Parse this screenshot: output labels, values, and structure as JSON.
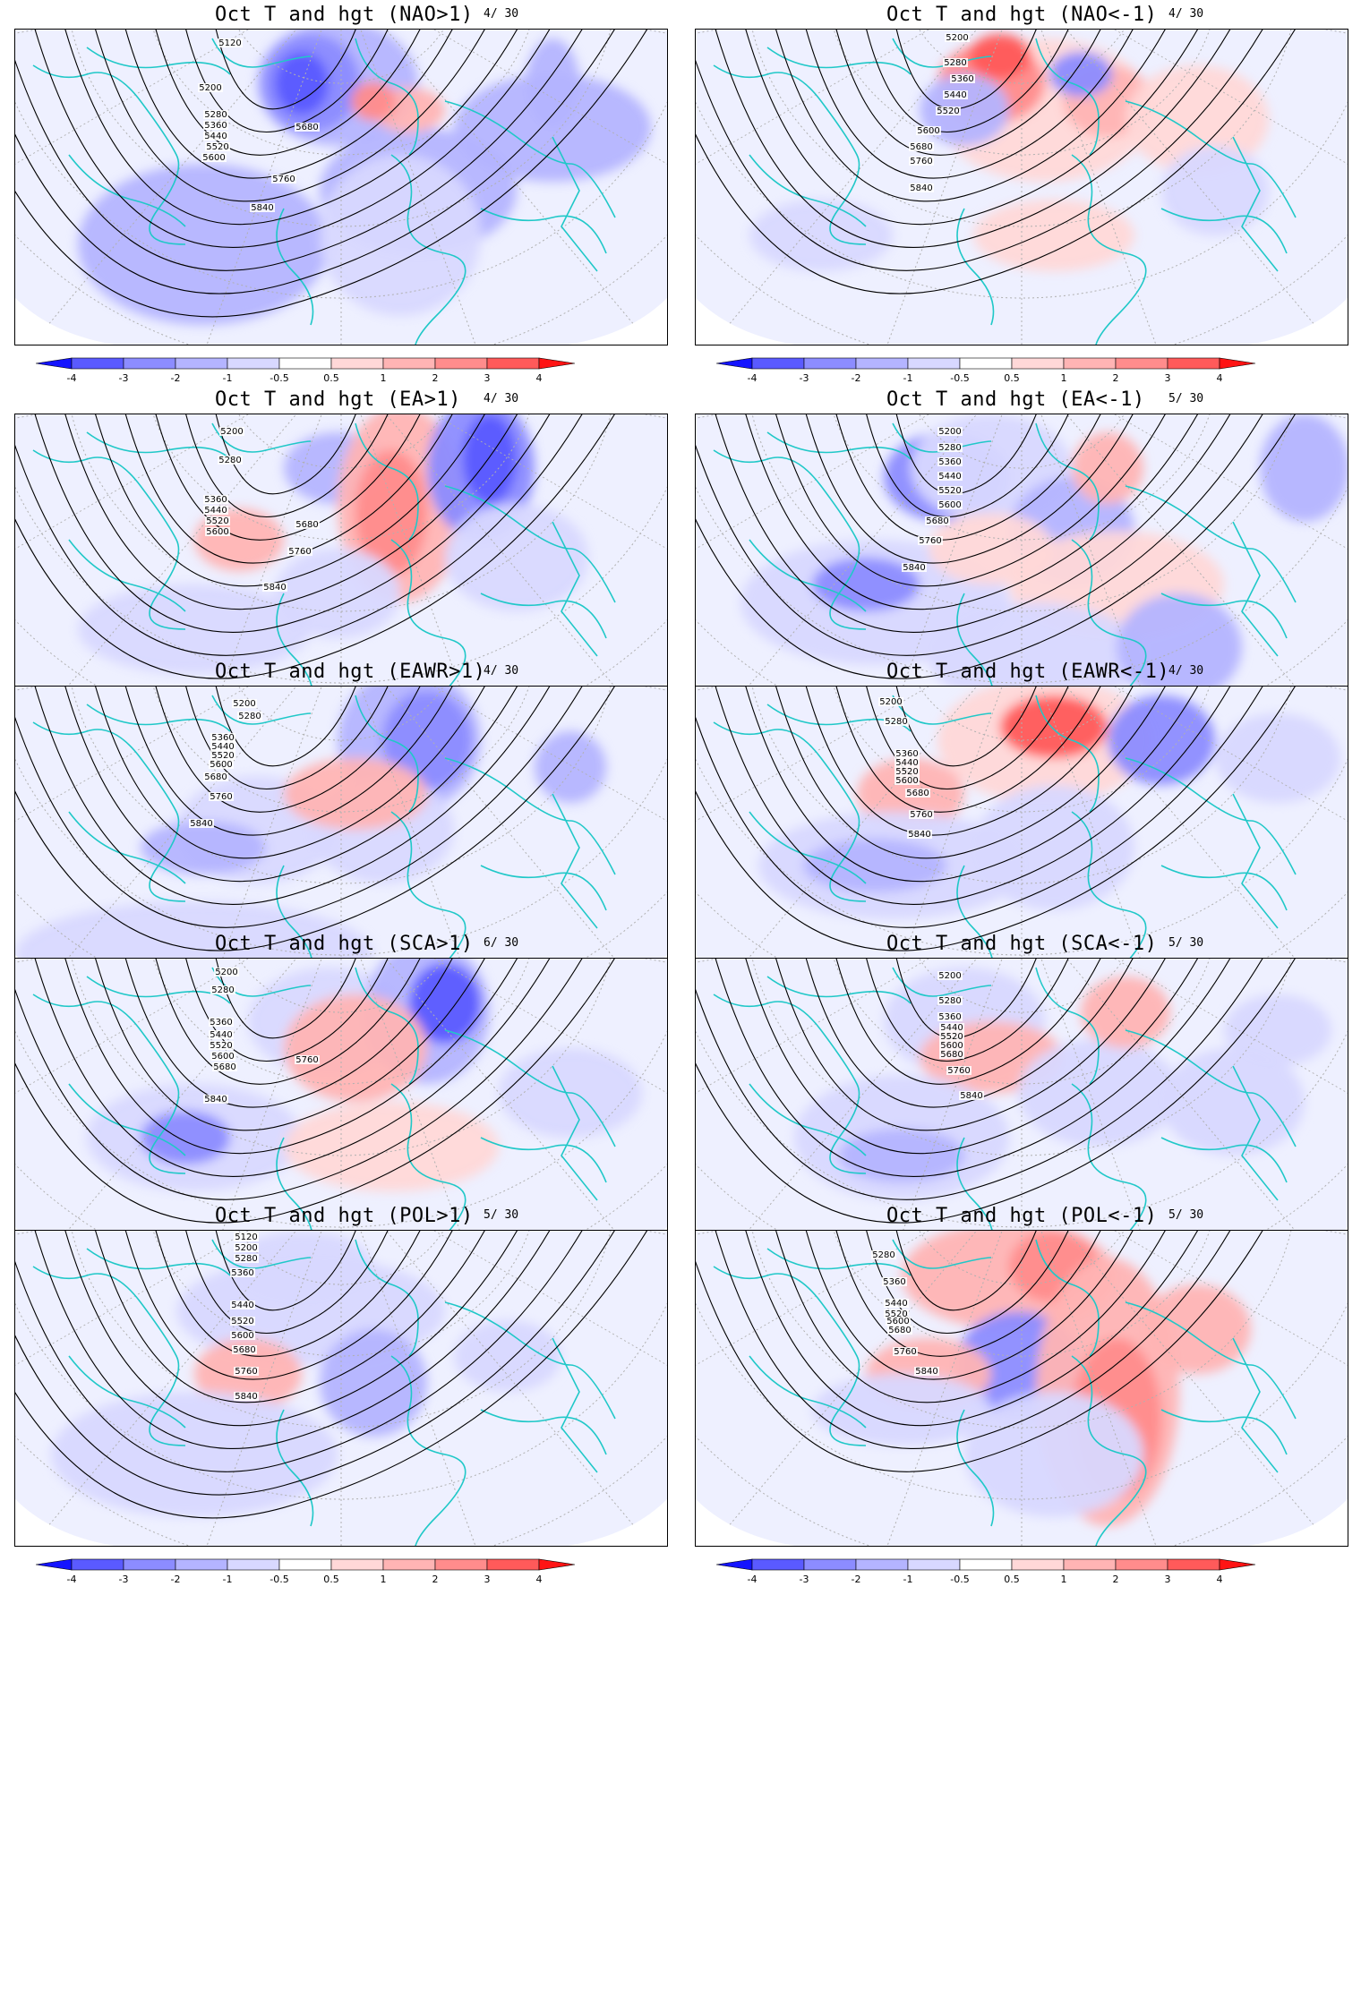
{
  "colors": {
    "coast": "#20c8c8",
    "contour": "#000000",
    "grid": "#b0b0b0",
    "levels": [
      "#1414ff",
      "#5a5aff",
      "#8c8cff",
      "#b4b4ff",
      "#d8d8ff",
      "#ffffff",
      "#ffd8d8",
      "#ffb4b4",
      "#ff8c8c",
      "#ff5a5a",
      "#ff1414"
    ]
  },
  "colorbar": {
    "ticks": [
      "-4",
      "-3",
      "-2",
      "-1",
      "-0.5",
      "0.5",
      "1",
      "2",
      "3",
      "4"
    ]
  },
  "panels": [
    {
      "title": "Oct T and hgt (NAO>1)",
      "count": "4/ 30",
      "labels": [
        "5120",
        "5200",
        "5280",
        "5360",
        "5440",
        "5520",
        "5600",
        "5680",
        "5760",
        "5840"
      ]
    },
    {
      "title": "Oct T and hgt (NAO<-1)",
      "count": "4/ 30",
      "labels": [
        "5200",
        "5280",
        "5360",
        "5440",
        "5520",
        "5600",
        "5680",
        "5760",
        "5840"
      ]
    },
    {
      "title": "Oct T and hgt (EA>1)",
      "count": "4/ 30",
      "labels": [
        "5200",
        "5280",
        "5360",
        "5440",
        "5520",
        "5600",
        "5680",
        "5760",
        "5840"
      ]
    },
    {
      "title": "Oct T and hgt (EA<-1)",
      "count": "5/ 30",
      "labels": [
        "5200",
        "5280",
        "5360",
        "5440",
        "5520",
        "5600",
        "5680",
        "5760",
        "5840"
      ]
    },
    {
      "title": "Oct T and hgt (EAWR>1)",
      "count": "4/ 30",
      "labels": [
        "5200",
        "5280",
        "5360",
        "5440",
        "5520",
        "5600",
        "5680",
        "5760",
        "5840"
      ]
    },
    {
      "title": "Oct T and hgt (EAWR<-1)",
      "count": "4/ 30",
      "labels": [
        "5200",
        "5280",
        "5360",
        "5440",
        "5520",
        "5600",
        "5680",
        "5760",
        "5840"
      ]
    },
    {
      "title": "Oct T and hgt (SCA>1)",
      "count": "6/ 30",
      "labels": [
        "5200",
        "5280",
        "5360",
        "5440",
        "5520",
        "5600",
        "5680",
        "5760",
        "5840"
      ]
    },
    {
      "title": "Oct T and hgt (SCA<-1)",
      "count": "5/ 30",
      "labels": [
        "5200",
        "5280",
        "5360",
        "5440",
        "5520",
        "5600",
        "5680",
        "5760",
        "5840"
      ]
    },
    {
      "title": "Oct T and hgt (POL>1)",
      "count": "5/ 30",
      "labels": [
        "5120",
        "5200",
        "5280",
        "5360",
        "5440",
        "5520",
        "5600",
        "5680",
        "5760",
        "5840"
      ]
    },
    {
      "title": "Oct T and hgt (POL<-1)",
      "count": "5/ 30",
      "labels": [
        "5280",
        "5360",
        "5440",
        "5520",
        "5600",
        "5680",
        "5760",
        "5840"
      ]
    }
  ]
}
